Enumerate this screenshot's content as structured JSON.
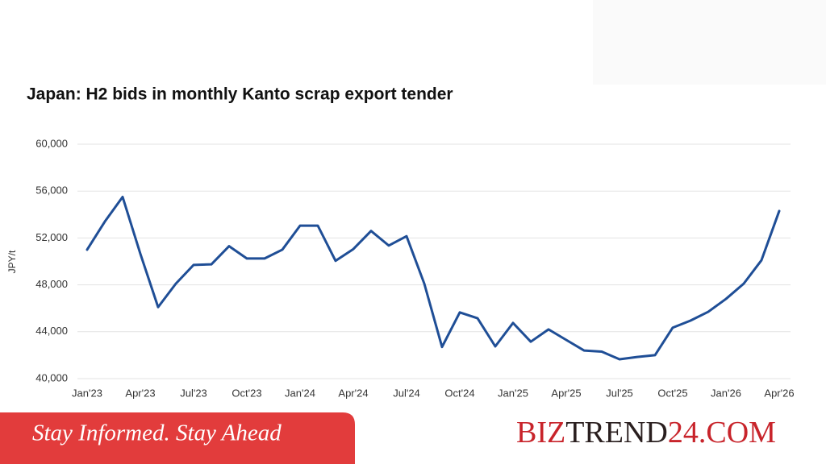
{
  "chart_data": {
    "type": "line",
    "title": "Japan: H2 bids in monthly Kanto scrap export tender",
    "y_label": "JPY/t",
    "categories": [
      "Jan'23",
      null,
      null,
      "Apr'23",
      null,
      null,
      "Jul'23",
      null,
      null,
      "Oct'23",
      null,
      null,
      "Jan'24",
      null,
      null,
      "Apr'24",
      null,
      null,
      "Jul'24",
      null,
      null,
      "Oct'24",
      null,
      null,
      "Jan'25",
      null,
      null,
      "Apr'25",
      null,
      null,
      "Jul'25",
      null,
      null,
      "Oct'25",
      null,
      null,
      "Jan'26",
      null,
      null,
      "Apr'26"
    ],
    "values": [
      51000,
      53400,
      55500,
      50650,
      46100,
      48100,
      49700,
      49750,
      51300,
      50250,
      50250,
      51000,
      53050,
      53050,
      50050,
      51050,
      52600,
      51350,
      52150,
      48100,
      42700,
      45650,
      45150,
      42750,
      44750,
      43150,
      44200,
      43300,
      42400,
      42300,
      41650,
      41850,
      42000,
      44350,
      44950,
      45700,
      46800,
      48100,
      50100,
      54300
    ],
    "color": "#1f4e96",
    "ylim": [
      40000,
      60000
    ],
    "yticks": [
      {
        "value": 40000,
        "label": "40,000"
      },
      {
        "value": 44000,
        "label": "44,000"
      },
      {
        "value": 48000,
        "label": "48,000"
      },
      {
        "value": 52000,
        "label": "52,000"
      },
      {
        "value": 56000,
        "label": "56,000"
      },
      {
        "value": 60000,
        "label": "60,000"
      }
    ],
    "grid": true
  },
  "banner": {
    "slogan": "Stay Informed. Stay Ahead",
    "brand": [
      "BIZ",
      "TREND",
      "24.COM"
    ]
  }
}
